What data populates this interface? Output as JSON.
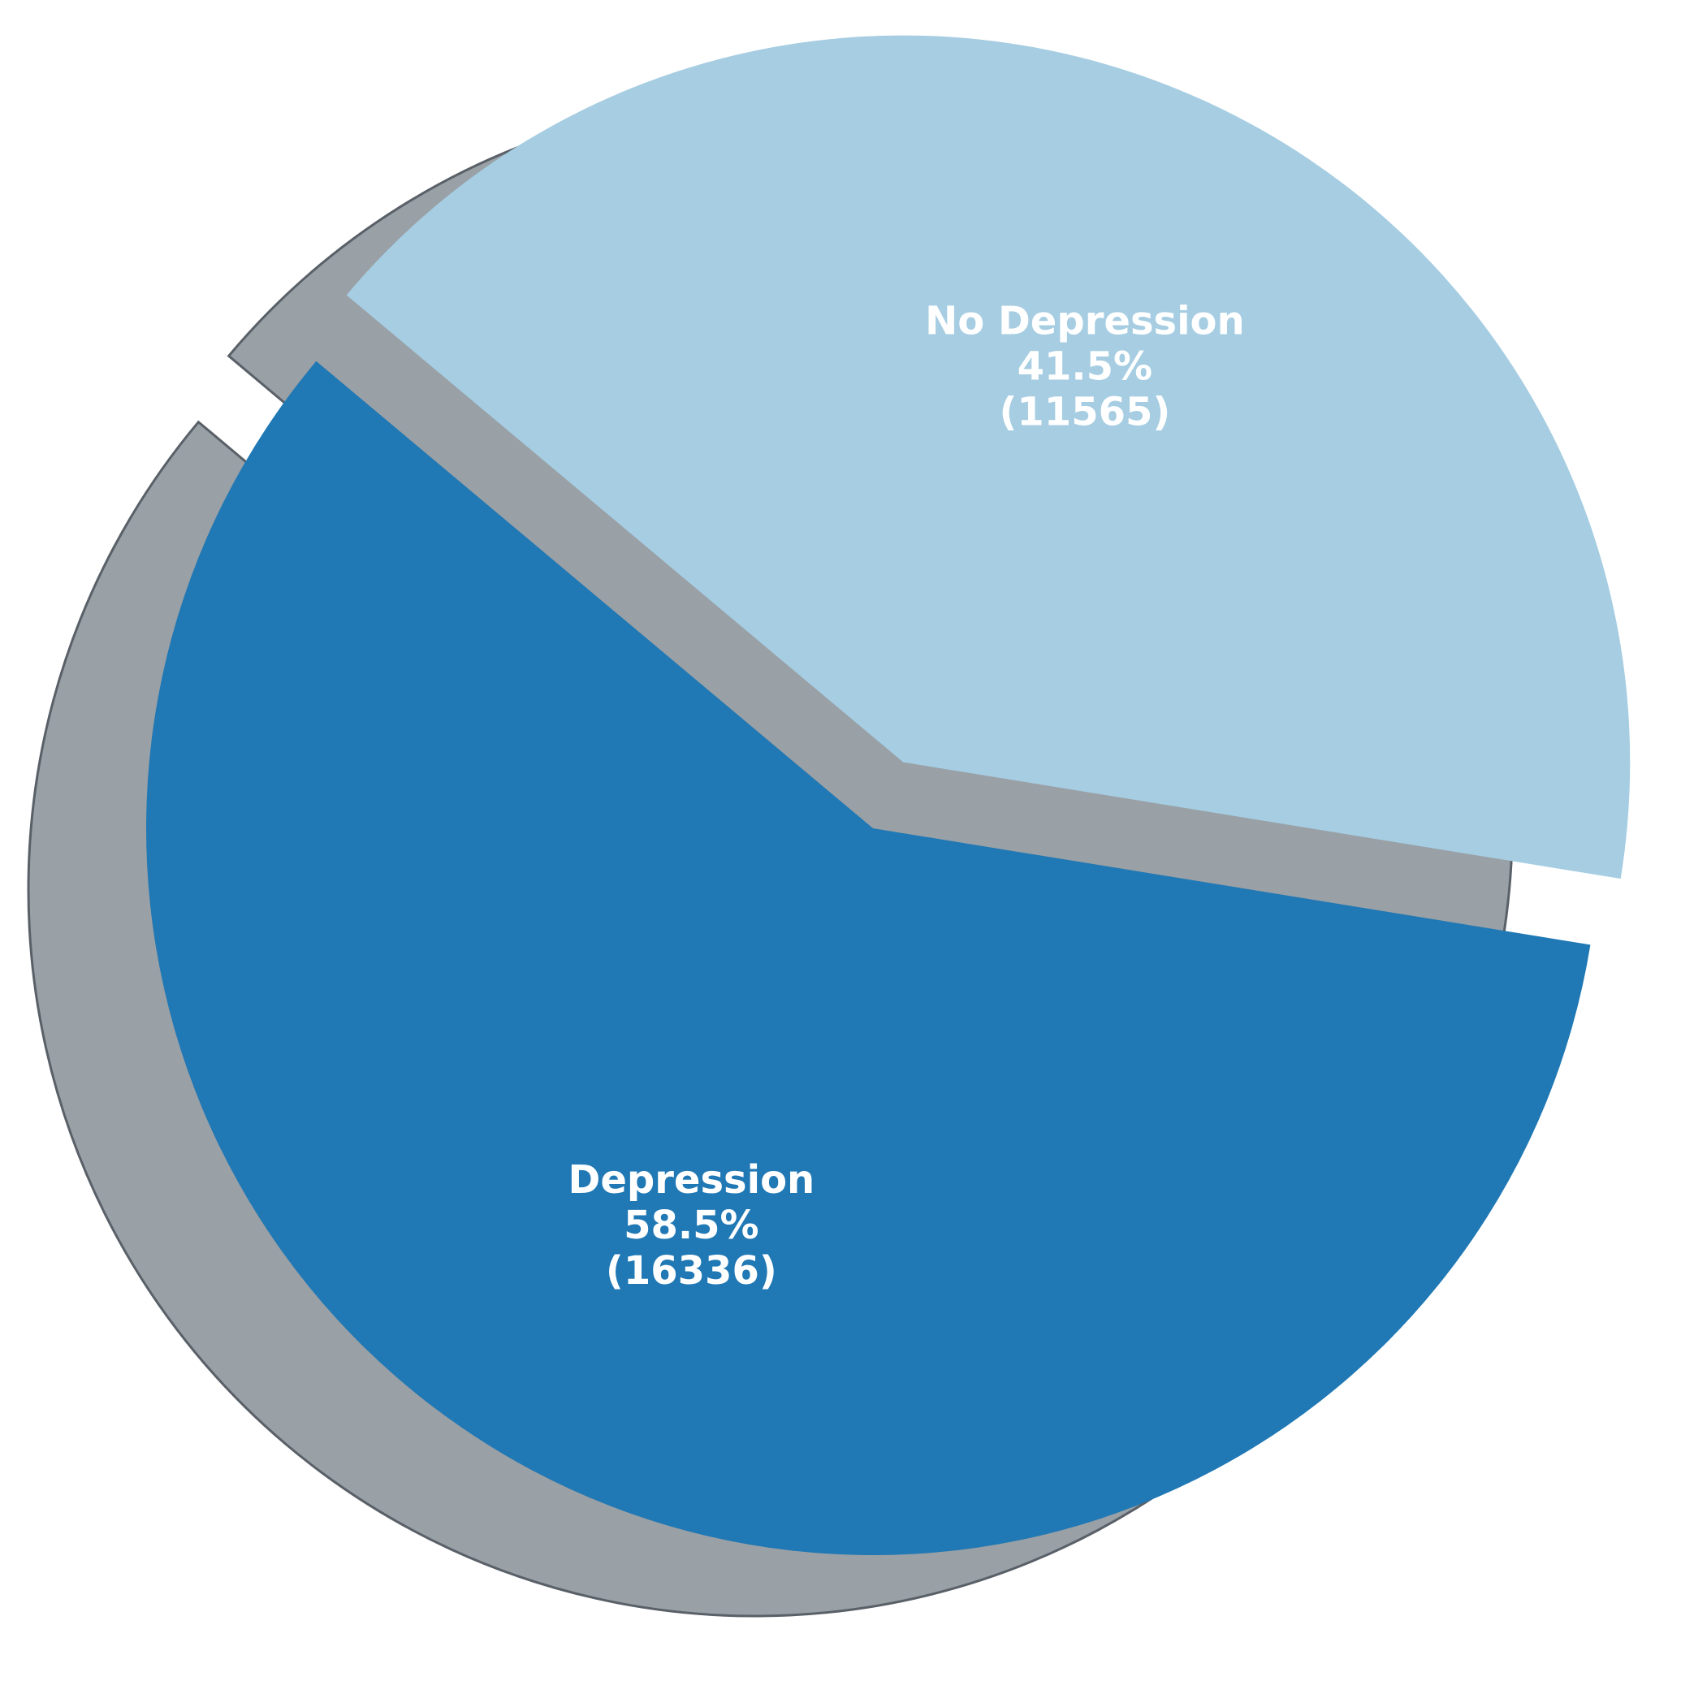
{
  "chart_data": {
    "type": "pie",
    "title": "",
    "categories": [
      "Depression",
      "No Depression"
    ],
    "values": [
      16336,
      11565
    ],
    "percent_labels": [
      "58.5%",
      "41.5%"
    ],
    "count_labels": [
      "(16336)",
      "(11565)"
    ],
    "colors": [
      "#2078b4",
      "#a6cde2"
    ],
    "shadow_color": "#808890",
    "exploded": true,
    "shadow": true,
    "legend": "none"
  }
}
